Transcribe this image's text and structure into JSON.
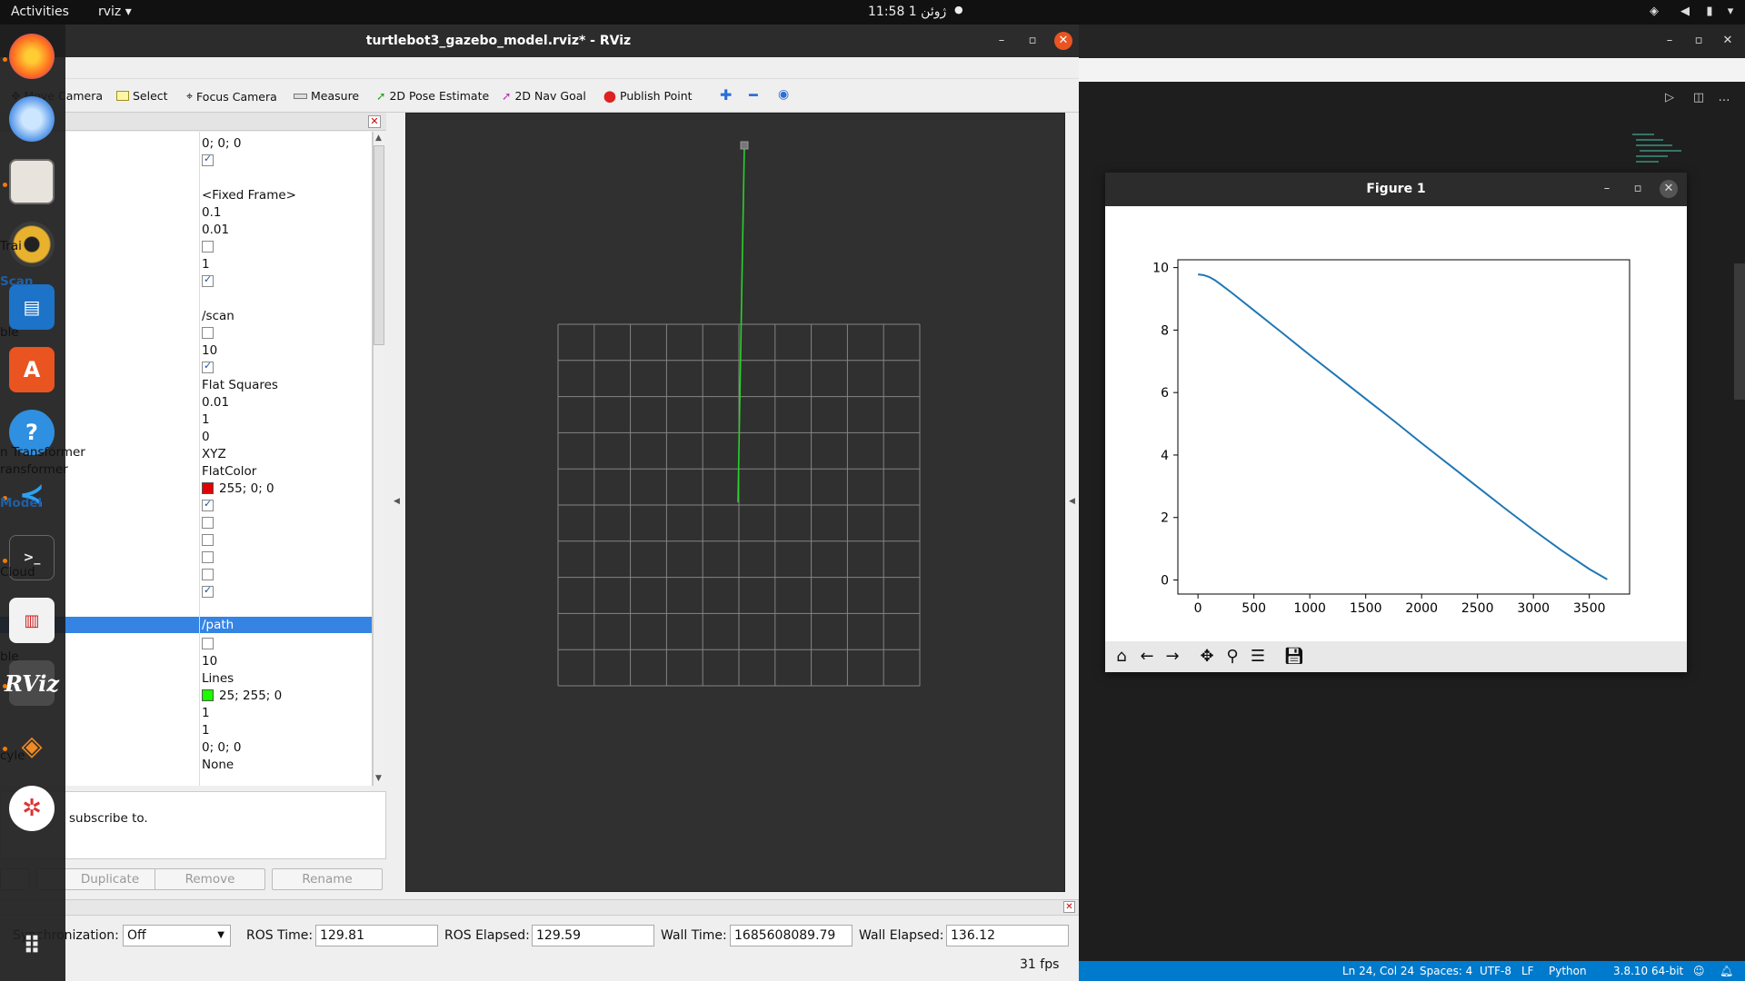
{
  "topbar": {
    "activities": "Activities",
    "app_menu": "rviz ▾",
    "clock": "11:58  1 ژوئن",
    "dot": "●"
  },
  "rviz": {
    "title": "turtlebot3_gazebo_model.rviz* - RViz",
    "toolbar": {
      "move_camera": "Move Camera",
      "select": "Select",
      "focus_camera": "Focus Camera",
      "measure": "Measure",
      "pose_estimate": "2D Pose Estimate",
      "nav_goal": "2D Nav Goal",
      "publish_point": "Publish Point"
    },
    "tree_rows": [
      {
        "text": "0; 0; 0",
        "type": "text"
      },
      {
        "text": "",
        "type": "check",
        "checked": true
      },
      {
        "text": "",
        "type": "blank"
      },
      {
        "text": "<Fixed Frame>",
        "type": "text"
      },
      {
        "text": "0.1",
        "type": "text"
      },
      {
        "text": "0.01",
        "type": "text"
      },
      {
        "text": "",
        "type": "check",
        "checked": false
      },
      {
        "text": "1",
        "type": "text"
      },
      {
        "text": "",
        "type": "check",
        "checked": true
      },
      {
        "text": "",
        "type": "blank"
      },
      {
        "text": "/scan",
        "type": "text"
      },
      {
        "text": "",
        "type": "check",
        "checked": false
      },
      {
        "text": "10",
        "type": "text"
      },
      {
        "text": "",
        "type": "check",
        "checked": true
      },
      {
        "text": "Flat Squares",
        "type": "text"
      },
      {
        "text": "0.01",
        "type": "text"
      },
      {
        "text": "1",
        "type": "text"
      },
      {
        "text": "0",
        "type": "text"
      },
      {
        "text": "XYZ",
        "type": "text"
      },
      {
        "text": "FlatColor",
        "type": "text"
      },
      {
        "text": "255; 0; 0",
        "type": "color",
        "color": "#e00000"
      },
      {
        "text": "",
        "type": "check",
        "checked": true
      },
      {
        "text": "",
        "type": "check",
        "checked": false
      },
      {
        "text": "",
        "type": "check",
        "checked": false
      },
      {
        "text": "",
        "type": "check",
        "checked": false
      },
      {
        "text": "",
        "type": "check",
        "checked": false
      },
      {
        "text": "",
        "type": "check",
        "checked": true
      },
      {
        "text": "",
        "type": "blank"
      },
      {
        "text": "/path",
        "type": "selected"
      },
      {
        "text": "",
        "type": "check",
        "checked": false
      },
      {
        "text": "10",
        "type": "text"
      },
      {
        "text": "Lines",
        "type": "text"
      },
      {
        "text": "25; 255; 0",
        "type": "color",
        "color": "#19ff00"
      },
      {
        "text": "1",
        "type": "text"
      },
      {
        "text": "1",
        "type": "text"
      },
      {
        "text": "0; 0; 0",
        "type": "text"
      },
      {
        "text": "None",
        "type": "text"
      }
    ],
    "description": "subscribe to.",
    "buttons": {
      "duplicate": "Duplicate",
      "remove": "Remove",
      "rename": "Rename"
    },
    "time": {
      "sync_label": "Synchronization:",
      "sync_value": "Off",
      "ros_time_label": "ROS Time:",
      "ros_time": "129.81",
      "ros_elapsed_label": "ROS Elapsed:",
      "ros_elapsed": "129.59",
      "wall_time_label": "Wall Time:",
      "wall_time": "1685608089.79",
      "wall_elapsed_label": "Wall Elapsed:",
      "wall_elapsed": "136.12",
      "fps": "31 fps"
    }
  },
  "dock_ghost_text": [
    {
      "text": "Trai",
      "blue": false
    },
    {
      "text": "Scan",
      "blue": true
    },
    {
      "text": "ble",
      "blue": false
    },
    {
      "text": "n Transformer",
      "blue": false
    },
    {
      "text": "ransformer",
      "blue": false
    },
    {
      "text": "Model",
      "blue": true
    },
    {
      "text": "Cloud",
      "blue": false
    },
    {
      "text": "ble",
      "blue": false
    },
    {
      "text": "cyle",
      "blue": false
    }
  ],
  "figure": {
    "title": "Figure 1"
  },
  "chart_data": {
    "type": "line",
    "title": "",
    "xlabel": "",
    "ylabel": "",
    "xlim": [
      -180,
      3860
    ],
    "ylim": [
      -0.45,
      10.25
    ],
    "xticks": [
      0,
      500,
      1000,
      1500,
      2000,
      2500,
      3000,
      3500
    ],
    "yticks": [
      0,
      2,
      4,
      6,
      8,
      10
    ],
    "grid": false,
    "series": [
      {
        "color": "#1f77b4",
        "x": [
          0,
          50,
          100,
          150,
          200,
          300,
          500,
          750,
          1000,
          1250,
          1500,
          1750,
          2000,
          2250,
          2500,
          2750,
          3000,
          3250,
          3500,
          3660
        ],
        "y": [
          9.78,
          9.76,
          9.7,
          9.6,
          9.47,
          9.2,
          8.63,
          7.92,
          7.2,
          6.5,
          5.8,
          5.1,
          4.38,
          3.68,
          2.98,
          2.28,
          1.6,
          0.95,
          0.35,
          0.02
        ]
      }
    ]
  },
  "vscode_status": {
    "position": "Ln 24, Col 24",
    "spaces": "Spaces: 4",
    "encoding": "UTF-8",
    "eol": "LF",
    "language": "Python",
    "interpreter": "3.8.10 64-bit"
  }
}
